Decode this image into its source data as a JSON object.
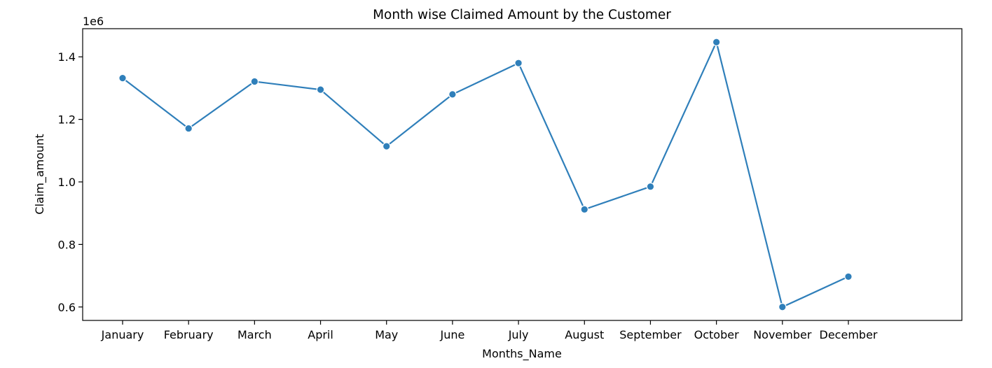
{
  "chart_data": {
    "type": "line",
    "title": "Month wise Claimed Amount by the Customer",
    "xlabel": "Months_Name",
    "ylabel": "Claim_amount",
    "y_offset_label": "1e6",
    "categories": [
      "January",
      "February",
      "March",
      "April",
      "May",
      "June",
      "July",
      "August",
      "September",
      "October",
      "November",
      "December"
    ],
    "series": [
      {
        "values": [
          1332000,
          1171000,
          1321000,
          1295000,
          1114000,
          1280000,
          1380000,
          912000,
          985000,
          1447000,
          600000,
          697000
        ]
      }
    ],
    "y_ticks": [
      0.6,
      0.8,
      1.0,
      1.2,
      1.4
    ],
    "y_tick_labels": [
      "0.6",
      "0.8",
      "1.0",
      "1.2",
      "1.4"
    ],
    "ylim": [
      557000,
      1490000
    ],
    "grid": false,
    "line_color": "#2f7fba",
    "marker": "circle"
  }
}
